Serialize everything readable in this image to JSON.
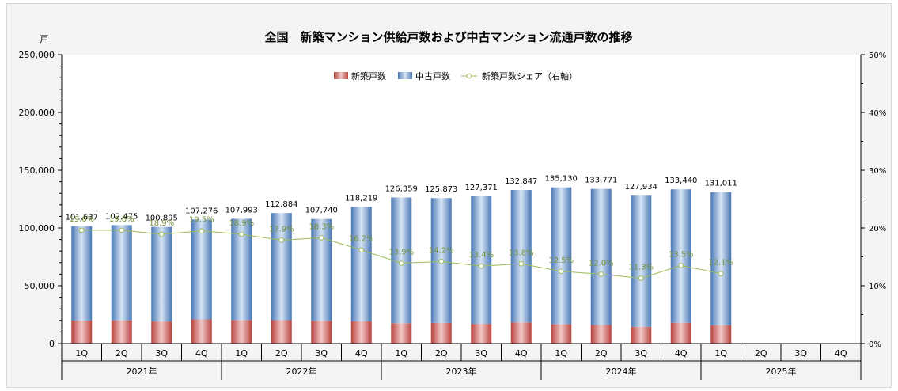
{
  "chart_data": {
    "type": "bar",
    "title": "全国　新築マンション供給戸数および中古マンション流通戸数の推移",
    "ylabel": "戸",
    "ylim": [
      0,
      250000
    ],
    "y_ticks": [
      "0",
      "50,000",
      "100,000",
      "150,000",
      "200,000",
      "250,000"
    ],
    "y2lim": [
      0,
      0.5
    ],
    "y2_ticks": [
      "0%",
      "10%",
      "20%",
      "30%",
      "40%",
      "50%"
    ],
    "grid": false,
    "legend_position": "top-center",
    "categories": [
      "1Q",
      "2Q",
      "3Q",
      "4Q",
      "1Q",
      "2Q",
      "3Q",
      "4Q",
      "1Q",
      "2Q",
      "3Q",
      "4Q",
      "1Q",
      "2Q",
      "3Q",
      "4Q",
      "1Q",
      "2Q",
      "3Q",
      "4Q"
    ],
    "groups": [
      {
        "label": "2021年",
        "start": 0,
        "count": 4
      },
      {
        "label": "2022年",
        "start": 4,
        "count": 4
      },
      {
        "label": "2023年",
        "start": 8,
        "count": 4
      },
      {
        "label": "2024年",
        "start": 12,
        "count": 4
      },
      {
        "label": "2025年",
        "start": 16,
        "count": 4
      }
    ],
    "totals": [
      101637,
      102475,
      100895,
      107276,
      107993,
      112884,
      107740,
      118219,
      126359,
      125873,
      127371,
      132847,
      135130,
      133771,
      127934,
      133440,
      131011,
      null,
      null,
      null
    ],
    "total_labels": [
      "101,637",
      "102,475",
      "100,895",
      "107,276",
      "107,993",
      "112,884",
      "107,740",
      "118,219",
      "126,359",
      "125,873",
      "127,371",
      "132,847",
      "135,130",
      "133,771",
      "127,934",
      "133,440",
      "131,011",
      "",
      "",
      ""
    ],
    "series": [
      {
        "name": "新築戸数",
        "color": "#c0504d",
        "values": [
          19900,
          20100,
          19100,
          20900,
          20400,
          20200,
          19700,
          19200,
          17600,
          17900,
          17100,
          18300,
          16900,
          16100,
          14500,
          18000,
          15900,
          null,
          null,
          null
        ]
      },
      {
        "name": "中古戸数",
        "color": "#4f81bd",
        "values": [
          81737,
          82375,
          81795,
          86376,
          87593,
          92684,
          88040,
          99019,
          108759,
          107973,
          110271,
          114547,
          118230,
          117671,
          113434,
          115440,
          115111,
          null,
          null,
          null
        ]
      },
      {
        "name": "新築戸数シェア（右軸）",
        "color": "#9bbb59",
        "axis": "right",
        "values": [
          0.196,
          0.196,
          0.189,
          0.195,
          0.189,
          0.179,
          0.183,
          0.162,
          0.139,
          0.142,
          0.134,
          0.138,
          0.125,
          0.12,
          0.113,
          0.135,
          0.121,
          null,
          null,
          null
        ]
      }
    ],
    "share_labels": [
      "19.6%",
      "19.6%",
      "18.9%",
      "19.5%",
      "18.9%",
      "17.9%",
      "18.3%",
      "16.2%",
      "13.9%",
      "14.2%",
      "13.4%",
      "13.8%",
      "12.5%",
      "12.0%",
      "11.3%",
      "13.5%",
      "12.1%",
      "",
      "",
      ""
    ]
  }
}
